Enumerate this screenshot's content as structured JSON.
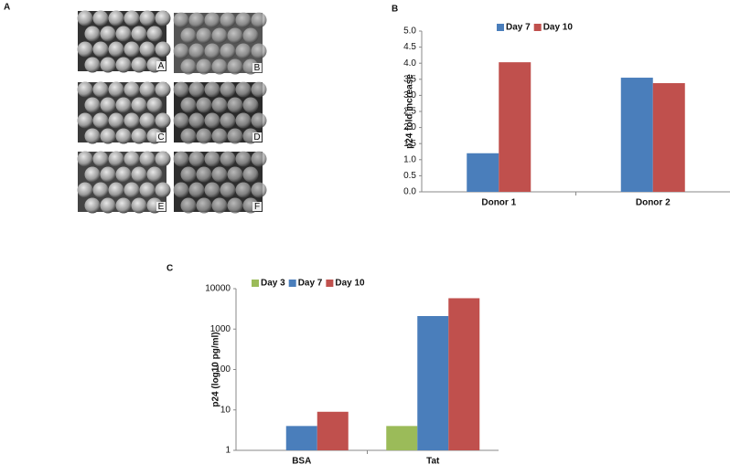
{
  "panel_labels": [
    "A",
    "B",
    "C"
  ],
  "image_labels": [
    "A",
    "B",
    "C",
    "D",
    "E",
    "F"
  ],
  "chart_data": [
    {
      "type": "bar",
      "y_label": "p24 fold increase",
      "categories": [
        "Donor 1",
        "Donor 2"
      ],
      "series": [
        {
          "name": "Day 7",
          "color": "#4a7ebb",
          "values": [
            1.2,
            3.55
          ]
        },
        {
          "name": "Day 10",
          "color": "#c0504d",
          "values": [
            4.03,
            3.38
          ]
        }
      ],
      "ylim": [
        0,
        5
      ],
      "yticks": [
        {
          "value": 0,
          "label": "0.0"
        },
        {
          "value": 0.5,
          "label": "0.5"
        },
        {
          "value": 1,
          "label": "1.0"
        },
        {
          "value": 1.5,
          "label": "1.5"
        },
        {
          "value": 2,
          "label": "2.0"
        },
        {
          "value": 2.5,
          "label": "2.5"
        },
        {
          "value": 3,
          "label": "3.0"
        },
        {
          "value": 3.5,
          "label": "3.5"
        },
        {
          "value": 4,
          "label": "4.0"
        },
        {
          "value": 4.5,
          "label": "4.5"
        },
        {
          "value": 5,
          "label": "5.0"
        }
      ],
      "legend": "top",
      "log_scale": false
    },
    {
      "type": "bar",
      "y_label": "p24 (log10 pg/ml)",
      "categories": [
        "BSA",
        "Tat"
      ],
      "series": [
        {
          "name": "Day 3",
          "color": "#9bbb59",
          "values": [
            null,
            4
          ]
        },
        {
          "name": "Day 7",
          "color": "#4a7ebb",
          "values": [
            4,
            2100
          ]
        },
        {
          "name": "Day 10",
          "color": "#c0504d",
          "values": [
            9,
            5800
          ]
        }
      ],
      "ylim": [
        1,
        10000
      ],
      "yticks": [
        1,
        10,
        100,
        1000,
        10000
      ],
      "legend": "top",
      "log_scale": true
    }
  ]
}
